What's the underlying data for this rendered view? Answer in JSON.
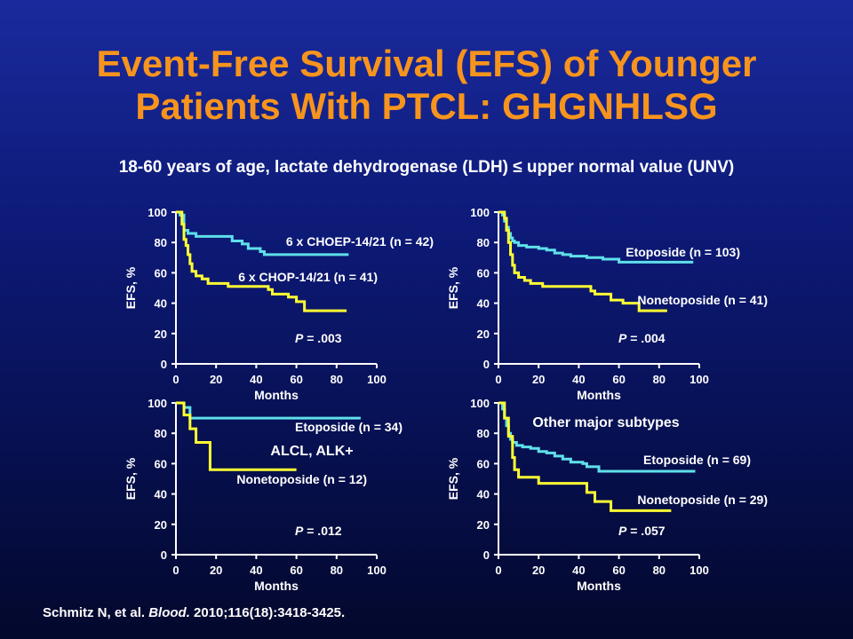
{
  "slide": {
    "title_line1": "Event-Free Survival (EFS) of Younger",
    "title_line2": "Patients With PTCL: GHGNHLSG",
    "subtitle": "18-60 years of age, lactate dehydrogenase (LDH) ≤ upper normal value (UNV)",
    "citation_authors": "Schmitz N, et al.",
    "citation_journal": "Blood.",
    "citation_rest": "2010;116(18):3418-3425."
  },
  "colors": {
    "series_cyan": "#5fe0ea",
    "series_yellow": "#ffff33",
    "title": "#f7941d",
    "text": "#ffffff"
  },
  "chart_data": [
    {
      "type": "line",
      "step": true,
      "xlabel": "Months",
      "ylabel": "EFS, %",
      "xlim": [
        0,
        100
      ],
      "ylim": [
        0,
        100
      ],
      "xticks": [
        "0",
        "20",
        "40",
        "60",
        "80",
        "100"
      ],
      "yticks": [
        "0",
        "20",
        "40",
        "60",
        "80",
        "100"
      ],
      "pvalue_label": "P",
      "pvalue": " = .003",
      "series": [
        {
          "name": "6 x CHOEP-14/21 (n = 42)",
          "color": "#5fe0ea",
          "x": [
            0,
            2,
            4,
            6,
            10,
            22,
            28,
            33,
            36,
            42,
            44,
            86
          ],
          "y": [
            100,
            98,
            88,
            86,
            84,
            84,
            81,
            79,
            76,
            74,
            72,
            72
          ]
        },
        {
          "name": "6 x CHOP-14/21 (n = 41)",
          "color": "#ffff33",
          "x": [
            0,
            3,
            4,
            5,
            6,
            7,
            8,
            10,
            13,
            16,
            26,
            46,
            48,
            56,
            60,
            64,
            85
          ],
          "y": [
            100,
            92,
            82,
            78,
            72,
            66,
            61,
            58,
            56,
            53,
            51,
            49,
            46,
            44,
            41,
            35,
            35
          ]
        }
      ]
    },
    {
      "type": "line",
      "step": true,
      "xlabel": "Months",
      "ylabel": "EFS, %",
      "xlim": [
        0,
        100
      ],
      "ylim": [
        0,
        100
      ],
      "xticks": [
        "0",
        "20",
        "40",
        "60",
        "80",
        "100"
      ],
      "yticks": [
        "0",
        "20",
        "40",
        "60",
        "80",
        "100"
      ],
      "pvalue_label": "P",
      "pvalue": " = .004",
      "series": [
        {
          "name": "Etoposide (n = 103)",
          "color": "#5fe0ea",
          "x": [
            0,
            2,
            3,
            4,
            5,
            6,
            7,
            8,
            10,
            14,
            20,
            24,
            28,
            32,
            36,
            44,
            52,
            60,
            97
          ],
          "y": [
            100,
            98,
            94,
            90,
            86,
            83,
            81,
            80,
            78,
            77,
            76,
            75,
            73,
            72,
            71,
            70,
            69,
            67,
            67
          ]
        },
        {
          "name": "Nonetoposide (n = 41)",
          "color": "#ffff33",
          "x": [
            0,
            3,
            4,
            5,
            6,
            7,
            8,
            10,
            13,
            16,
            22,
            28,
            46,
            48,
            56,
            62,
            70,
            84
          ],
          "y": [
            100,
            96,
            88,
            80,
            72,
            65,
            60,
            57,
            55,
            53,
            51,
            51,
            48,
            46,
            42,
            40,
            35,
            35
          ]
        }
      ]
    },
    {
      "type": "line",
      "step": true,
      "xlabel": "Months",
      "ylabel": "EFS, %",
      "xlim": [
        0,
        100
      ],
      "ylim": [
        0,
        100
      ],
      "xticks": [
        "0",
        "20",
        "40",
        "60",
        "80",
        "100"
      ],
      "yticks": [
        "0",
        "20",
        "40",
        "60",
        "80",
        "100"
      ],
      "pvalue_label": "P",
      "pvalue": " = .012",
      "annotation": "ALCL, ALK+",
      "series": [
        {
          "name": "Etoposide (n = 34)",
          "color": "#5fe0ea",
          "x": [
            0,
            4,
            7,
            92
          ],
          "y": [
            100,
            97,
            90,
            90
          ]
        },
        {
          "name": "Nonetoposide (n = 12)",
          "color": "#ffff33",
          "x": [
            0,
            4,
            7,
            10,
            17,
            60
          ],
          "y": [
            100,
            92,
            83,
            74,
            56,
            56
          ]
        }
      ]
    },
    {
      "type": "line",
      "step": true,
      "xlabel": "Months",
      "ylabel": "EFS, %",
      "xlim": [
        0,
        100
      ],
      "ylim": [
        0,
        100
      ],
      "xticks": [
        "0",
        "20",
        "40",
        "60",
        "80",
        "100"
      ],
      "yticks": [
        "0",
        "20",
        "40",
        "60",
        "80",
        "100"
      ],
      "pvalue_label": "P",
      "pvalue": " = .057",
      "annotation": "Other major subtypes",
      "series": [
        {
          "name": "Etoposide (n = 69)",
          "color": "#5fe0ea",
          "x": [
            0,
            2,
            3,
            4,
            5,
            6,
            7,
            9,
            12,
            16,
            20,
            24,
            28,
            32,
            36,
            42,
            44,
            50,
            98
          ],
          "y": [
            100,
            96,
            90,
            85,
            80,
            76,
            74,
            72,
            71,
            70,
            68,
            67,
            65,
            63,
            61,
            60,
            58,
            55,
            55
          ]
        },
        {
          "name": "Nonetoposide (n = 29)",
          "color": "#ffff33",
          "x": [
            0,
            3,
            5,
            7,
            8,
            10,
            20,
            44,
            48,
            56,
            86
          ],
          "y": [
            100,
            90,
            78,
            64,
            56,
            51,
            47,
            41,
            35,
            29,
            29
          ]
        }
      ]
    }
  ]
}
